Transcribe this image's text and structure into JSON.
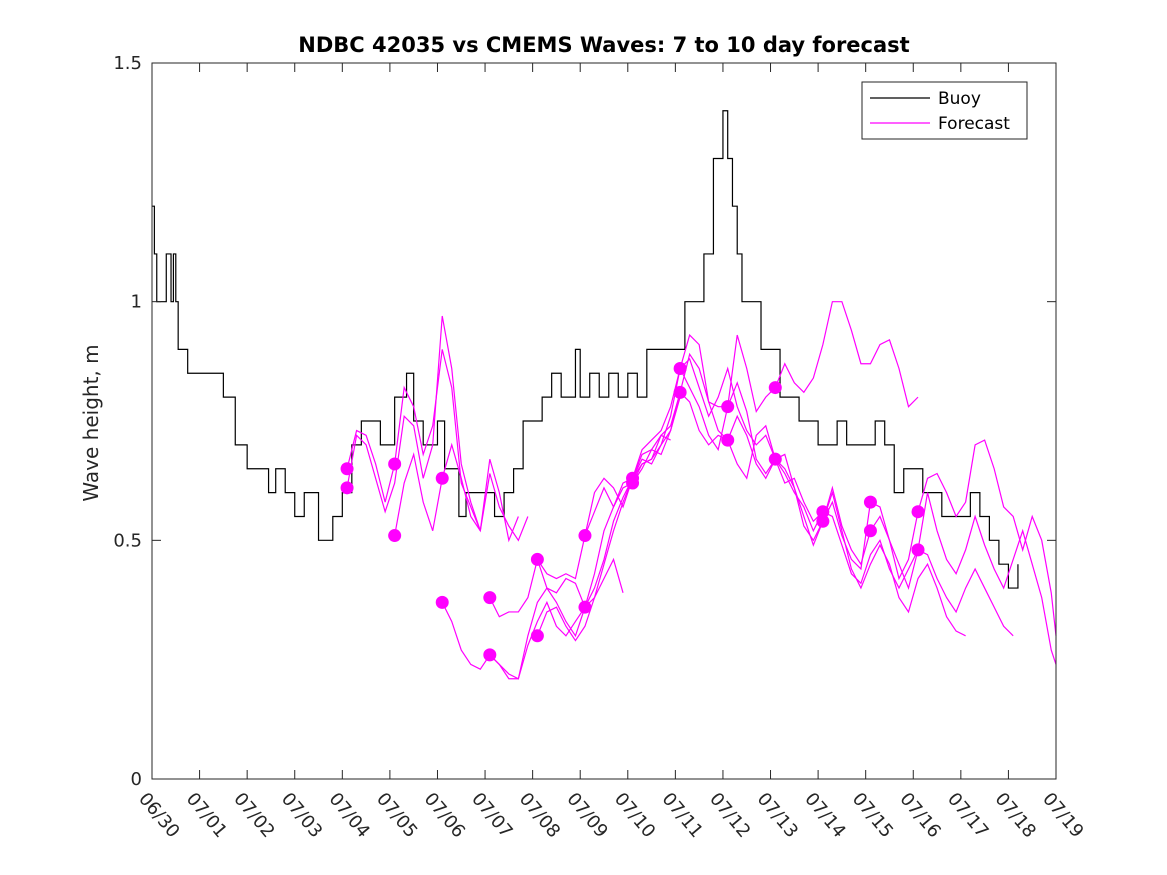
{
  "chart_data": {
    "type": "line",
    "title": "NDBC 42035 vs CMEMS Waves: 7 to 10 day forecast",
    "xlabel": "",
    "ylabel": "Wave height, m",
    "xlim": [
      "06/30",
      "07/19"
    ],
    "ylim": [
      0,
      1.5
    ],
    "x_tick_labels": [
      "06/30",
      "07/01",
      "07/02",
      "07/03",
      "07/04",
      "07/05",
      "07/06",
      "07/07",
      "07/08",
      "07/09",
      "07/10",
      "07/11",
      "07/12",
      "07/13",
      "07/14",
      "07/15",
      "07/16",
      "07/17",
      "07/18",
      "07/19"
    ],
    "y_ticks": [
      0,
      0.5,
      1,
      1.5
    ],
    "y_tick_labels": [
      "0",
      "0.5",
      "1",
      "1.5"
    ],
    "grid": false,
    "legend": {
      "position": "top-right",
      "entries": [
        "Buoy",
        "Forecast"
      ]
    },
    "colors": {
      "buoy": "#000000",
      "forecast": "#ff00ff"
    },
    "series": [
      {
        "name": "Buoy",
        "x_days": [
          0,
          0.05,
          0.1,
          0.3,
          0.4,
          0.45,
          0.5,
          0.55,
          0.6,
          0.75,
          1.0,
          1.25,
          1.5,
          1.75,
          2.0,
          2.2,
          2.45,
          2.6,
          2.8,
          3.0,
          3.2,
          3.5,
          3.6,
          3.8,
          4.0,
          4.2,
          4.4,
          4.6,
          4.8,
          5.0,
          5.1,
          5.25,
          5.35,
          5.5,
          5.7,
          5.9,
          6.0,
          6.15,
          6.3,
          6.45,
          6.6,
          6.8,
          7.0,
          7.2,
          7.4,
          7.6,
          7.8,
          8.0,
          8.2,
          8.4,
          8.6,
          8.8,
          8.9,
          9.0,
          9.2,
          9.4,
          9.6,
          9.8,
          10.0,
          10.2,
          10.4,
          10.6,
          10.8,
          11.0,
          11.2,
          11.4,
          11.6,
          11.8,
          12.0,
          12.1,
          12.2,
          12.3,
          12.4,
          12.5,
          12.6,
          12.8,
          13.0,
          13.2,
          13.4,
          13.6,
          13.8,
          14.0,
          14.2,
          14.4,
          14.6,
          14.8,
          15.0,
          15.2,
          15.4,
          15.6,
          15.8,
          16.0,
          16.2,
          16.4,
          16.6,
          16.8,
          17.0,
          17.2,
          17.4,
          17.6,
          17.8,
          18.0,
          18.2
        ],
        "values": [
          1.2,
          1.1,
          1.0,
          1.1,
          1.0,
          1.1,
          1.0,
          0.9,
          0.9,
          0.85,
          0.85,
          0.85,
          0.8,
          0.7,
          0.65,
          0.65,
          0.6,
          0.65,
          0.6,
          0.55,
          0.6,
          0.5,
          0.5,
          0.55,
          0.6,
          0.7,
          0.75,
          0.75,
          0.7,
          0.7,
          0.8,
          0.8,
          0.85,
          0.75,
          0.7,
          0.7,
          0.75,
          0.65,
          0.65,
          0.55,
          0.6,
          0.6,
          0.6,
          0.55,
          0.6,
          0.65,
          0.75,
          0.75,
          0.8,
          0.85,
          0.8,
          0.8,
          0.9,
          0.8,
          0.85,
          0.8,
          0.85,
          0.8,
          0.85,
          0.8,
          0.9,
          0.9,
          0.9,
          0.9,
          1.0,
          1.0,
          1.1,
          1.3,
          1.4,
          1.3,
          1.2,
          1.1,
          1.0,
          1.0,
          1.0,
          0.9,
          0.9,
          0.8,
          0.8,
          0.75,
          0.75,
          0.7,
          0.7,
          0.75,
          0.7,
          0.7,
          0.7,
          0.75,
          0.7,
          0.6,
          0.65,
          0.65,
          0.6,
          0.6,
          0.55,
          0.55,
          0.55,
          0.6,
          0.55,
          0.5,
          0.45,
          0.4,
          0.45
        ]
      },
      {
        "name": "Forecast",
        "runs": [
          {
            "x_days": [
              4.1,
              4.3,
              4.5,
              4.7,
              4.9,
              5.1,
              5.3,
              5.5,
              5.7,
              5.9,
              6.1,
              6.3,
              6.5,
              6.7,
              6.9
            ],
            "values": [
              0.65,
              0.73,
              0.72,
              0.66,
              0.58,
              0.66,
              0.82,
              0.78,
              0.68,
              0.74,
              0.9,
              0.82,
              0.62,
              0.57,
              0.52
            ]
          },
          {
            "x_days": [
              4.1,
              4.3,
              4.5,
              4.7,
              4.9,
              5.1,
              5.3,
              5.5,
              5.7,
              5.9,
              6.1,
              6.3,
              6.5,
              6.7,
              6.9,
              7.1,
              7.3,
              7.5,
              7.7
            ],
            "values": [
              0.61,
              0.72,
              0.7,
              0.63,
              0.56,
              0.62,
              0.76,
              0.74,
              0.63,
              0.7,
              0.97,
              0.86,
              0.66,
              0.58,
              0.52,
              0.67,
              0.6,
              0.5,
              0.55
            ]
          },
          {
            "x_days": [
              5.1,
              5.3,
              5.5,
              5.7,
              5.9,
              6.1,
              6.3,
              6.5,
              6.7,
              6.9,
              7.1,
              7.3,
              7.5,
              7.7,
              7.9
            ],
            "values": [
              0.51,
              0.62,
              0.68,
              0.58,
              0.52,
              0.63,
              0.7,
              0.63,
              0.55,
              0.52,
              0.64,
              0.57,
              0.53,
              0.5,
              0.55
            ]
          },
          {
            "x_days": [
              6.1,
              6.3,
              6.5,
              6.7,
              6.9,
              7.1,
              7.3,
              7.5,
              7.7,
              7.9,
              8.1,
              8.3,
              8.5,
              8.7,
              8.9,
              9.1,
              9.3,
              9.5,
              9.7,
              9.9
            ],
            "values": [
              0.37,
              0.33,
              0.27,
              0.24,
              0.23,
              0.26,
              0.24,
              0.21,
              0.21,
              0.3,
              0.37,
              0.4,
              0.39,
              0.42,
              0.41,
              0.36,
              0.38,
              0.42,
              0.46,
              0.39
            ]
          },
          {
            "x_days": [
              7.1,
              7.3,
              7.5,
              7.7,
              7.9,
              8.1,
              8.3,
              8.5,
              8.7,
              8.9,
              9.1,
              9.3,
              9.5,
              9.7,
              9.9,
              10.1,
              10.3,
              10.5,
              10.7,
              10.9
            ],
            "values": [
              0.38,
              0.34,
              0.35,
              0.35,
              0.38,
              0.46,
              0.43,
              0.42,
              0.43,
              0.42,
              0.51,
              0.56,
              0.61,
              0.57,
              0.62,
              0.63,
              0.68,
              0.69,
              0.72,
              0.71
            ]
          },
          {
            "x_days": [
              7.1,
              7.3,
              7.5,
              7.7,
              7.9,
              8.1,
              8.3,
              8.5,
              8.7,
              8.9,
              9.1,
              9.3,
              9.5,
              9.7,
              9.9,
              10.1,
              10.3,
              10.5,
              10.7,
              10.9,
              11.1
            ],
            "values": [
              0.26,
              0.24,
              0.22,
              0.21,
              0.28,
              0.33,
              0.37,
              0.32,
              0.3,
              0.33,
              0.36,
              0.4,
              0.46,
              0.54,
              0.59,
              0.63,
              0.67,
              0.66,
              0.7,
              0.73,
              0.8
            ]
          },
          {
            "x_days": [
              8.1,
              8.3,
              8.5,
              8.7,
              8.9,
              9.1,
              9.3,
              9.5,
              9.7,
              9.9,
              10.1,
              10.3,
              10.5,
              10.7,
              10.9,
              11.1,
              11.3,
              11.5,
              11.7,
              11.9,
              12.1
            ],
            "values": [
              0.46,
              0.4,
              0.37,
              0.33,
              0.3,
              0.36,
              0.43,
              0.52,
              0.57,
              0.61,
              0.62,
              0.66,
              0.67,
              0.72,
              0.74,
              0.81,
              0.79,
              0.73,
              0.7,
              0.72,
              0.71
            ]
          },
          {
            "x_days": [
              8.1,
              8.3,
              8.5,
              8.7,
              8.9,
              9.1,
              9.3,
              9.5,
              9.7,
              9.9,
              10.1,
              10.3,
              10.5,
              10.7,
              10.9,
              11.1,
              11.3,
              11.5,
              11.7,
              11.9,
              12.1,
              12.3,
              12.5,
              12.7,
              12.9,
              13.1
            ],
            "values": [
              0.3,
              0.35,
              0.36,
              0.32,
              0.29,
              0.32,
              0.38,
              0.45,
              0.52,
              0.58,
              0.63,
              0.66,
              0.67,
              0.7,
              0.76,
              0.86,
              0.88,
              0.82,
              0.76,
              0.8,
              0.86,
              0.78,
              0.73,
              0.7,
              0.72,
              0.67
            ]
          },
          {
            "x_days": [
              9.1,
              9.3,
              9.5,
              9.7,
              9.9,
              10.1,
              10.3,
              10.5,
              10.7,
              10.9,
              11.1,
              11.3,
              11.5,
              11.7,
              11.9,
              12.1,
              12.3,
              12.5,
              12.7,
              12.9,
              13.1,
              13.3,
              13.5,
              13.7,
              13.9,
              14.1
            ],
            "values": [
              0.51,
              0.6,
              0.63,
              0.61,
              0.57,
              0.63,
              0.69,
              0.71,
              0.73,
              0.78,
              0.86,
              0.93,
              0.91,
              0.79,
              0.73,
              0.71,
              0.66,
              0.63,
              0.72,
              0.74,
              0.67,
              0.62,
              0.63,
              0.58,
              0.54,
              0.56
            ]
          },
          {
            "x_days": [
              10.1,
              10.3,
              10.5,
              10.7,
              10.9,
              11.1,
              11.3,
              11.5,
              11.7,
              11.9,
              12.1,
              12.3,
              12.5,
              12.7,
              12.9,
              13.1,
              13.3,
              13.5,
              13.7,
              13.9,
              14.1,
              14.3,
              14.5,
              14.7,
              14.9,
              15.1
            ],
            "values": [
              0.62,
              0.65,
              0.69,
              0.68,
              0.73,
              0.81,
              0.89,
              0.86,
              0.79,
              0.78,
              0.78,
              0.83,
              0.77,
              0.67,
              0.64,
              0.67,
              0.65,
              0.61,
              0.53,
              0.5,
              0.54,
              0.61,
              0.53,
              0.48,
              0.45,
              0.52
            ]
          },
          {
            "x_days": [
              11.1,
              11.3,
              11.5,
              11.7,
              11.9,
              12.1,
              12.3,
              12.5,
              12.7,
              12.9,
              13.1,
              13.3,
              13.5,
              13.7,
              13.9,
              14.1,
              14.3,
              14.5,
              14.7,
              14.9,
              15.1,
              15.3,
              15.5,
              15.7,
              15.9,
              16.1
            ],
            "values": [
              0.86,
              0.82,
              0.78,
              0.72,
              0.69,
              0.78,
              0.93,
              0.86,
              0.77,
              0.8,
              0.82,
              0.87,
              0.83,
              0.81,
              0.84,
              0.91,
              1.0,
              1.0,
              0.94,
              0.87,
              0.87,
              0.91,
              0.92,
              0.86,
              0.78,
              0.8
            ]
          },
          {
            "x_days": [
              12.1,
              12.3,
              12.5,
              12.7,
              12.9,
              13.1,
              13.3,
              13.5,
              13.7,
              13.9,
              14.1,
              14.3,
              14.5,
              14.7,
              14.9,
              15.1,
              15.3,
              15.5,
              15.7,
              15.9,
              16.1,
              16.3,
              16.5,
              16.7,
              16.9,
              17.1
            ],
            "values": [
              0.71,
              0.76,
              0.72,
              0.66,
              0.63,
              0.67,
              0.68,
              0.61,
              0.55,
              0.49,
              0.54,
              0.6,
              0.52,
              0.44,
              0.4,
              0.45,
              0.49,
              0.45,
              0.38,
              0.35,
              0.42,
              0.45,
              0.4,
              0.34,
              0.31,
              0.3
            ]
          },
          {
            "x_days": [
              13.1,
              13.3,
              13.5,
              13.7,
              13.9,
              14.1,
              14.3,
              14.5,
              14.7,
              14.9,
              15.1,
              15.3,
              15.5,
              15.7,
              15.9,
              16.1,
              16.3,
              16.5,
              16.7,
              16.9,
              17.1,
              17.3,
              17.5,
              17.7,
              17.9,
              18.1
            ],
            "values": [
              0.67,
              0.64,
              0.6,
              0.57,
              0.52,
              0.56,
              0.55,
              0.49,
              0.43,
              0.41,
              0.47,
              0.5,
              0.44,
              0.4,
              0.44,
              0.48,
              0.47,
              0.42,
              0.38,
              0.35,
              0.4,
              0.44,
              0.4,
              0.36,
              0.32,
              0.3
            ]
          },
          {
            "x_days": [
              14.1,
              14.3,
              14.5,
              14.7,
              14.9,
              15.1,
              15.3,
              15.5,
              15.7,
              15.9,
              16.1,
              16.3,
              16.5,
              16.7,
              16.9,
              17.1,
              17.3,
              17.5,
              17.7,
              17.9,
              18.1,
              18.3,
              18.5,
              18.7,
              18.9,
              19.0
            ],
            "values": [
              0.54,
              0.58,
              0.51,
              0.46,
              0.44,
              0.58,
              0.57,
              0.5,
              0.42,
              0.46,
              0.56,
              0.63,
              0.64,
              0.6,
              0.55,
              0.58,
              0.7,
              0.71,
              0.65,
              0.57,
              0.55,
              0.48,
              0.55,
              0.5,
              0.39,
              0.3
            ]
          },
          {
            "x_days": [
              15.1,
              15.3,
              15.5,
              15.7,
              15.9,
              16.1,
              16.3,
              16.5,
              16.7,
              16.9,
              17.1,
              17.3,
              17.5,
              17.7,
              17.9,
              18.1,
              18.3,
              18.5,
              18.7,
              18.9,
              19.0
            ],
            "values": [
              0.52,
              0.55,
              0.5,
              0.45,
              0.4,
              0.48,
              0.6,
              0.52,
              0.46,
              0.43,
              0.48,
              0.55,
              0.49,
              0.44,
              0.4,
              0.46,
              0.52,
              0.45,
              0.38,
              0.27,
              0.24
            ]
          }
        ]
      }
    ],
    "forecast_start_markers": {
      "x_days": [
        4.1,
        4.1,
        5.1,
        5.1,
        6.1,
        6.1,
        7.1,
        7.1,
        8.1,
        8.1,
        9.1,
        9.1,
        10.1,
        10.1,
        11.1,
        11.1,
        12.1,
        12.1,
        13.1,
        13.1,
        14.1,
        14.1,
        15.1,
        15.1,
        16.1,
        16.1
      ],
      "values": [
        0.65,
        0.61,
        0.66,
        0.51,
        0.63,
        0.37,
        0.38,
        0.26,
        0.46,
        0.3,
        0.51,
        0.36,
        0.63,
        0.62,
        0.86,
        0.81,
        0.78,
        0.71,
        0.82,
        0.67,
        0.56,
        0.54,
        0.58,
        0.52,
        0.56,
        0.48
      ]
    }
  }
}
